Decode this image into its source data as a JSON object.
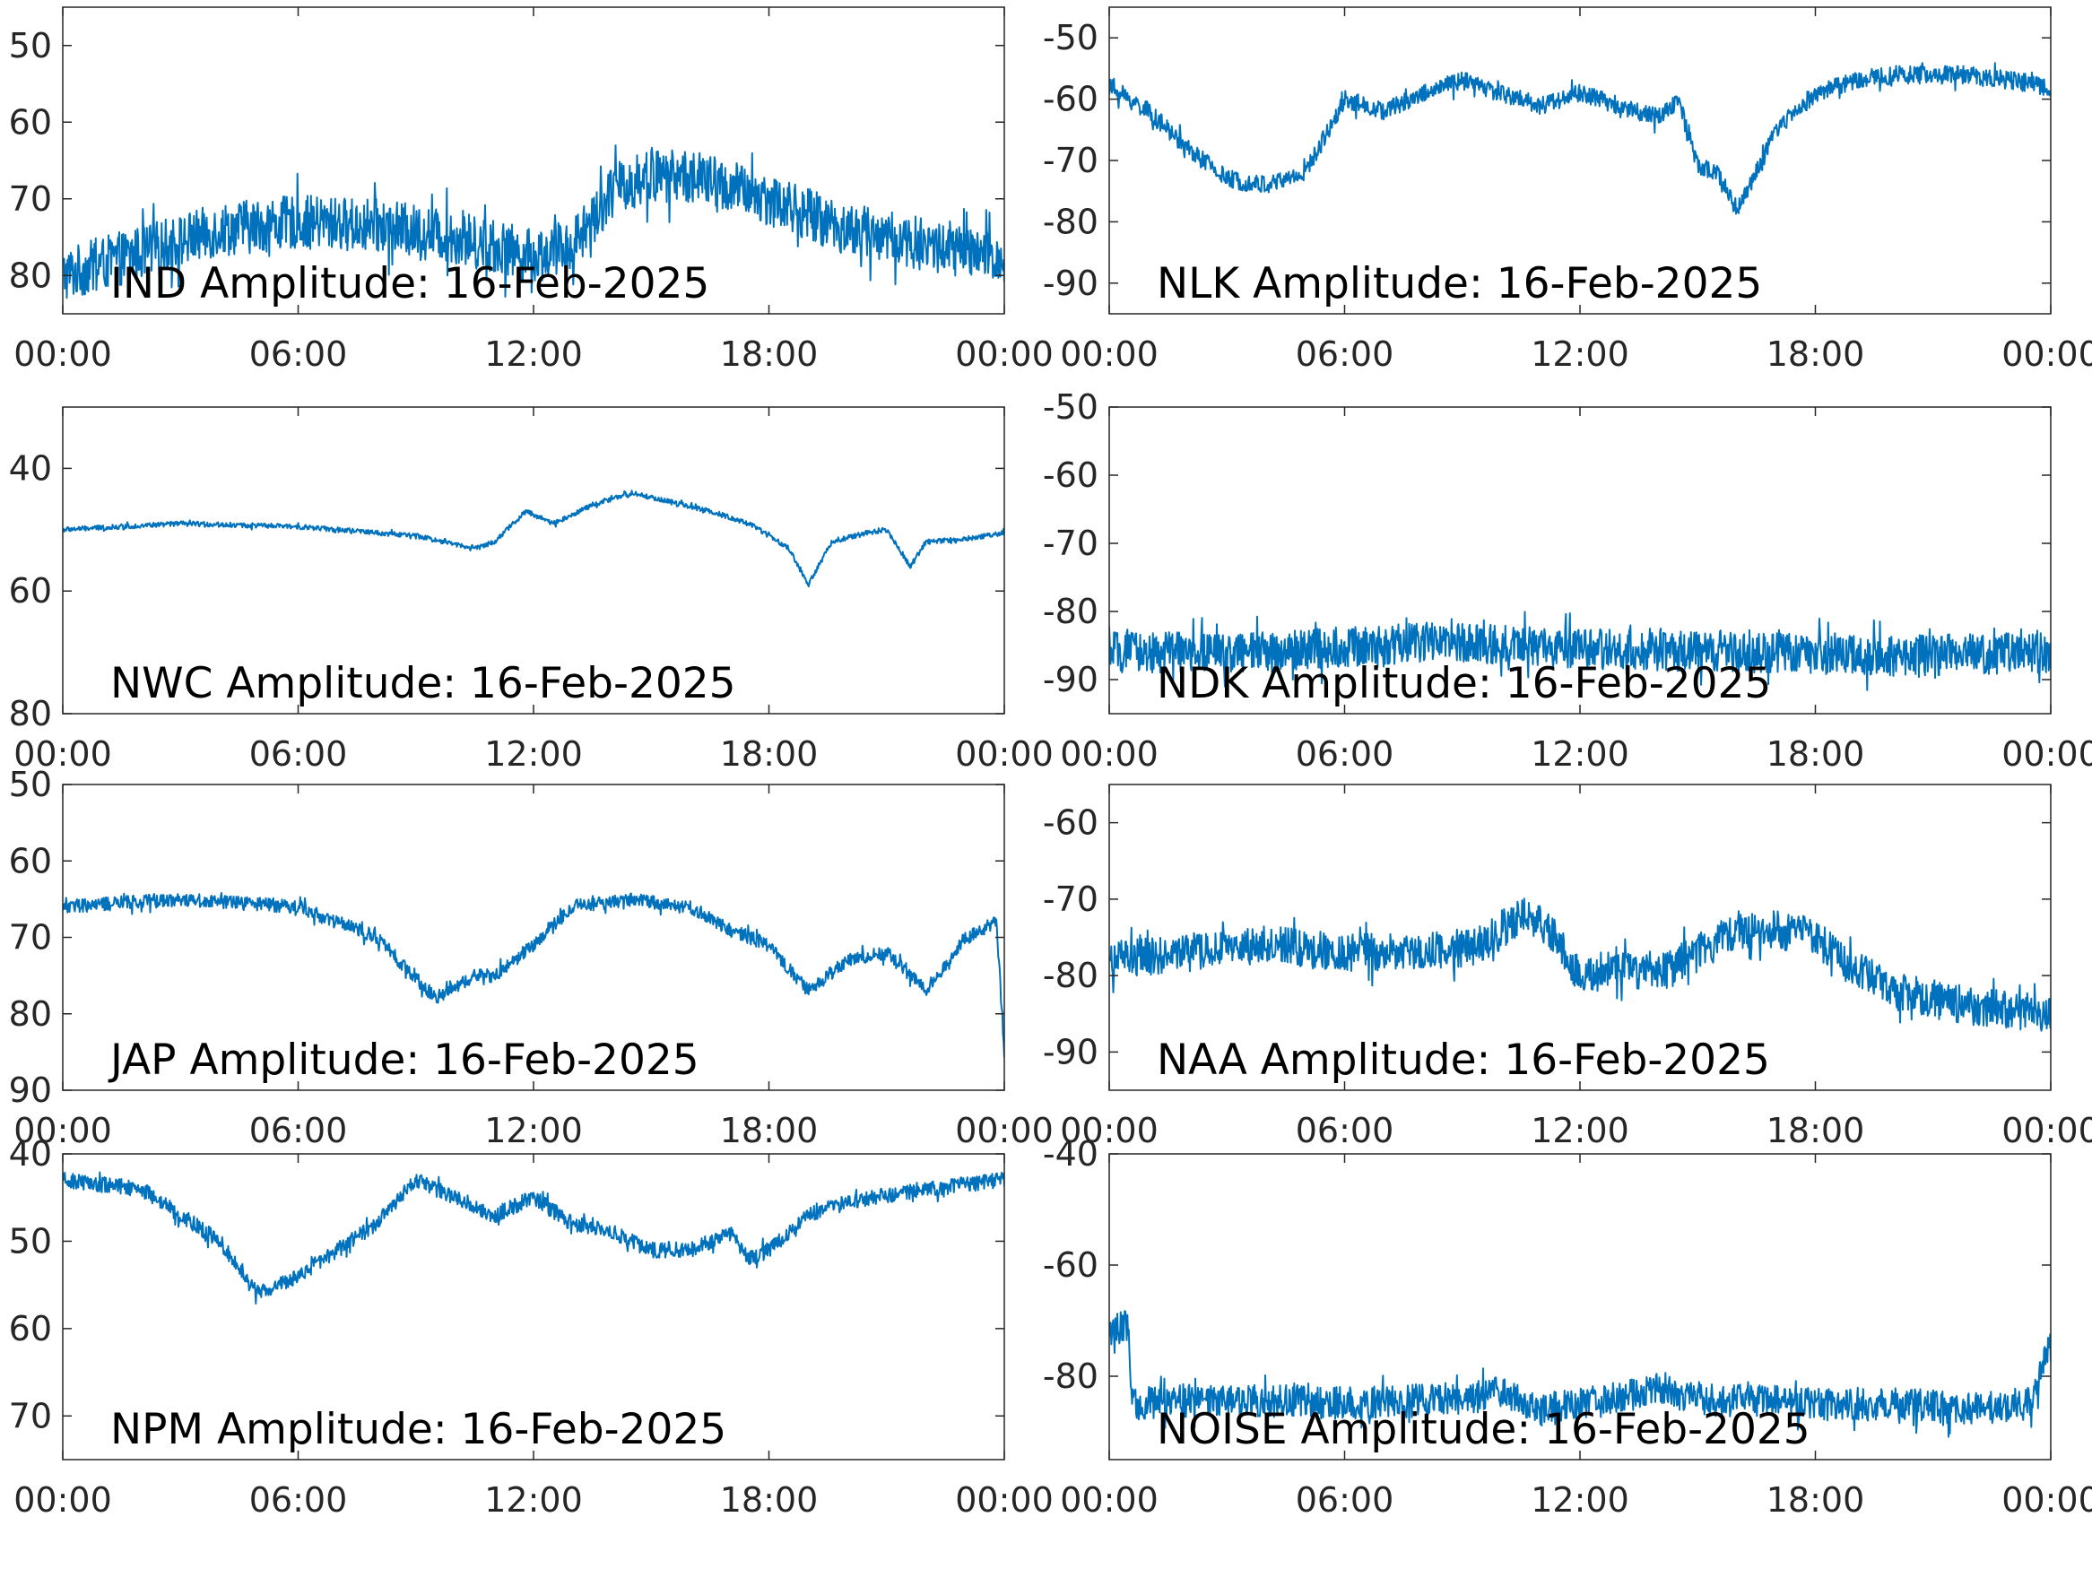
{
  "colors": {
    "line": "#0072BD",
    "axis": "#262626",
    "title_text": "#000000",
    "background": "#ffffff"
  },
  "chart_data": [
    {
      "type": "line",
      "title": "IND Amplitude: 16-Feb-2025",
      "xticks": [
        "00:00",
        "06:00",
        "12:00",
        "18:00",
        "00:00"
      ],
      "yticks": [
        -50,
        -60,
        -70,
        -80
      ],
      "ytick_labels": [
        "50",
        "60",
        "70",
        "80"
      ],
      "ylim": [
        -85,
        -45
      ],
      "noise": 3.5,
      "series": [
        {
          "x_hours": [
            0,
            2,
            4,
            6,
            8,
            10,
            12,
            13,
            14,
            15,
            16,
            18,
            20,
            22,
            24
          ],
          "y": [
            -80,
            -77,
            -74,
            -73,
            -73.5,
            -75,
            -77.5,
            -76,
            -69,
            -67,
            -67,
            -70,
            -74,
            -76,
            -78
          ]
        }
      ]
    },
    {
      "type": "line",
      "title": "NLK Amplitude: 16-Feb-2025",
      "xticks": [
        "00:00",
        "06:00",
        "12:00",
        "18:00",
        "00:00"
      ],
      "yticks": [
        -50,
        -60,
        -70,
        -80,
        -90
      ],
      "ytick_labels": [
        "-50",
        "-60",
        "-70",
        "-80",
        "-90"
      ],
      "ylim": [
        -95,
        -45
      ],
      "noise": 1.5,
      "series": [
        {
          "x_hours": [
            0,
            1,
            2,
            3,
            4,
            5,
            6,
            7,
            8,
            9,
            10,
            11,
            12,
            13,
            14,
            14.5,
            15,
            15.5,
            16,
            16.5,
            17,
            18,
            19,
            20,
            21,
            22,
            23,
            24
          ],
          "y": [
            -58,
            -62,
            -68,
            -73,
            -74,
            -72,
            -60,
            -62,
            -59,
            -57,
            -59,
            -61,
            -59,
            -61,
            -63,
            -60,
            -71,
            -72,
            -78,
            -72,
            -65,
            -59,
            -57,
            -56,
            -56,
            -56,
            -57,
            -58
          ]
        }
      ]
    },
    {
      "type": "line",
      "title": "NWC Amplitude: 16-Feb-2025",
      "xticks": [
        "00:00",
        "06:00",
        "12:00",
        "18:00",
        "00:00"
      ],
      "yticks": [
        -40,
        -60,
        -80
      ],
      "ytick_labels": [
        "40",
        "60",
        "80"
      ],
      "ylim": [
        -80,
        -30
      ],
      "noise": 0.4,
      "series": [
        {
          "x_hours": [
            0,
            3,
            6,
            9,
            10.5,
            11,
            11.8,
            12.5,
            13.5,
            14.5,
            15.5,
            16.5,
            17.5,
            18.5,
            19,
            19.6,
            20.5,
            21,
            21.6,
            22,
            23,
            24
          ],
          "y": [
            -50,
            -49,
            -49.5,
            -51,
            -53,
            -52,
            -47,
            -49,
            -46,
            -44,
            -45.5,
            -47,
            -49,
            -53,
            -59,
            -52,
            -50.5,
            -50,
            -56,
            -52,
            -51.5,
            -50.5
          ]
        }
      ]
    },
    {
      "type": "line",
      "title": "NDK Amplitude: 16-Feb-2025",
      "xticks": [
        "00:00",
        "06:00",
        "12:00",
        "18:00",
        "00:00"
      ],
      "yticks": [
        -50,
        -60,
        -70,
        -80,
        -90
      ],
      "ytick_labels": [
        "-50",
        "-60",
        "-70",
        "-80",
        "-90"
      ],
      "ylim": [
        -95,
        -50
      ],
      "noise": 3,
      "series": [
        {
          "x_hours": [
            0,
            4,
            8,
            12,
            16,
            20,
            24
          ],
          "y": [
            -86,
            -86,
            -84.5,
            -85.5,
            -86,
            -86.5,
            -86
          ]
        }
      ]
    },
    {
      "type": "line",
      "title": "JAP Amplitude: 16-Feb-2025",
      "xticks": [
        "00:00",
        "06:00",
        "12:00",
        "18:00",
        "00:00"
      ],
      "yticks": [
        -50,
        -60,
        -70,
        -80,
        -90
      ],
      "ytick_labels": [
        "50",
        "60",
        "70",
        "80",
        "90"
      ],
      "ylim": [
        -90,
        -50
      ],
      "noise": 0.9,
      "series": [
        {
          "x_hours": [
            0,
            3,
            6,
            8,
            9.5,
            10.5,
            11,
            12,
            13,
            14.5,
            16,
            17,
            18,
            19,
            20,
            21,
            22,
            23,
            23.8,
            24
          ],
          "y": [
            -66,
            -65,
            -66,
            -70,
            -78,
            -75,
            -75,
            -71,
            -66,
            -65,
            -66,
            -69,
            -71,
            -77,
            -73,
            -72,
            -77,
            -70,
            -68,
            -85
          ]
        }
      ]
    },
    {
      "type": "line",
      "title": "NAA Amplitude: 16-Feb-2025",
      "xticks": [
        "00:00",
        "06:00",
        "12:00",
        "18:00",
        "00:00"
      ],
      "yticks": [
        -60,
        -70,
        -80,
        -90
      ],
      "ytick_labels": [
        "-60",
        "-70",
        "-80",
        "-90"
      ],
      "ylim": [
        -95,
        -55
      ],
      "noise": 2.5,
      "series": [
        {
          "x_hours": [
            0,
            2,
            4,
            6,
            8,
            9.5,
            10.5,
            11.2,
            12,
            13,
            14,
            15,
            16,
            17,
            18,
            19,
            20,
            22,
            24
          ],
          "y": [
            -78,
            -77,
            -76,
            -77,
            -77,
            -76,
            -72,
            -74,
            -80,
            -79,
            -80,
            -77,
            -74,
            -74,
            -75,
            -79,
            -82,
            -84,
            -85
          ]
        }
      ]
    },
    {
      "type": "line",
      "title": "NPM Amplitude: 16-Feb-2025",
      "xticks": [
        "00:00",
        "06:00",
        "12:00",
        "18:00",
        "00:00"
      ],
      "yticks": [
        -40,
        -50,
        -60,
        -70
      ],
      "ytick_labels": [
        "40",
        "50",
        "60",
        "70"
      ],
      "ylim": [
        -75,
        -40
      ],
      "noise": 0.9,
      "series": [
        {
          "x_hours": [
            0,
            2,
            4,
            5,
            6,
            7,
            8,
            9,
            10,
            11,
            12,
            13,
            14,
            15,
            16,
            17,
            17.5,
            18,
            19,
            20,
            22,
            24
          ],
          "y": [
            -43,
            -44,
            -50,
            -56,
            -54,
            -51,
            -48,
            -43,
            -45,
            -47,
            -45,
            -48,
            -49,
            -51,
            -51,
            -49,
            -52,
            -51,
            -47,
            -45.5,
            -44,
            -43
          ]
        }
      ]
    },
    {
      "type": "line",
      "title": "NOISE Amplitude: 16-Feb-2025",
      "xticks": [
        "00:00",
        "06:00",
        "12:00",
        "18:00",
        "00:00"
      ],
      "yticks": [
        -40,
        -60,
        -80
      ],
      "ytick_labels": [
        "-40",
        "-60",
        "-80"
      ],
      "ylim": [
        -95,
        -40
      ],
      "noise": 3,
      "series": [
        {
          "x_hours": [
            0,
            0.5,
            0.55,
            3,
            6,
            9,
            10,
            11,
            12,
            13,
            14,
            15,
            18,
            20,
            22,
            23.5,
            24
          ],
          "y": [
            -72,
            -71,
            -85,
            -84,
            -85,
            -84,
            -83,
            -86,
            -85,
            -84,
            -82,
            -84,
            -85,
            -85,
            -86,
            -85,
            -73
          ]
        }
      ]
    }
  ]
}
